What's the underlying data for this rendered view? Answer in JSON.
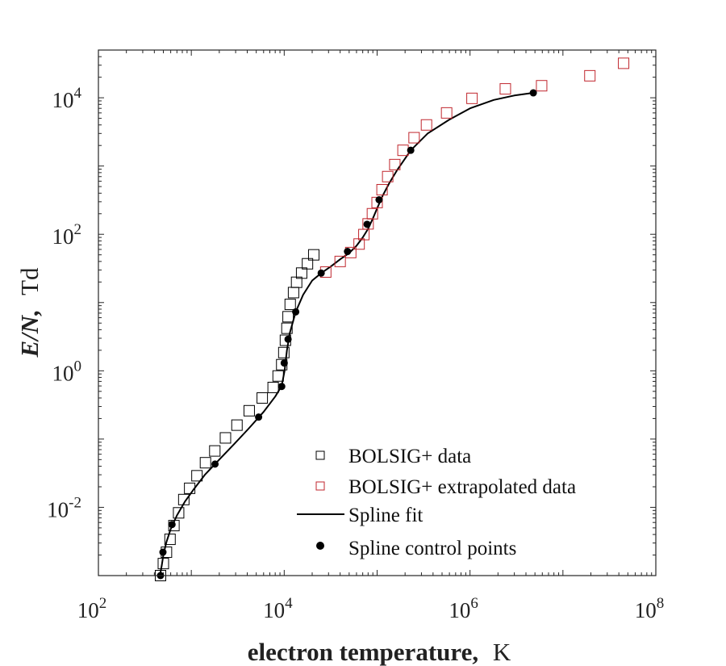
{
  "chart_data": {
    "type": "scatter",
    "xscale": "log",
    "yscale": "log",
    "xlim": [
      100,
      100000000
    ],
    "ylim": [
      0.001,
      50000
    ],
    "xlabel": {
      "bold": "electron temperature,",
      "unit": "K"
    },
    "ylabel": {
      "bold": "E/N,",
      "unit": "Td"
    },
    "xticks": [
      {
        "value": 100,
        "base": "10",
        "exp": "2"
      },
      {
        "value": 10000,
        "base": "10",
        "exp": "4"
      },
      {
        "value": 1000000,
        "base": "10",
        "exp": "6"
      },
      {
        "value": 100000000,
        "base": "10",
        "exp": "8"
      }
    ],
    "yticks": [
      {
        "value": 0.01,
        "base": "10",
        "exp": "-2"
      },
      {
        "value": 1,
        "base": "10",
        "exp": "0"
      },
      {
        "value": 100,
        "base": "10",
        "exp": "2"
      },
      {
        "value": 10000,
        "base": "10",
        "exp": "4"
      }
    ],
    "legend_position": "bottom-right",
    "series": [
      {
        "name": "BOLSIG+ data",
        "marker": "open-square",
        "color": "#000000",
        "x": [
          466,
          500,
          540,
          590,
          650,
          730,
          830,
          960,
          1150,
          1420,
          1790,
          2330,
          3100,
          4200,
          5800,
          7600,
          8600,
          9400,
          9900,
          10300,
          10700,
          11000,
          11600,
          12600,
          13600,
          15400,
          17800,
          20800
        ],
        "y": [
          0.001,
          0.0015,
          0.0022,
          0.0034,
          0.0054,
          0.0083,
          0.013,
          0.019,
          0.029,
          0.045,
          0.067,
          0.104,
          0.16,
          0.26,
          0.4,
          0.57,
          0.84,
          1.23,
          1.85,
          2.8,
          4.2,
          6.2,
          9.4,
          14,
          19.8,
          27,
          37,
          50
        ]
      },
      {
        "name": "BOLSIG+ extrapolated data",
        "marker": "open-square",
        "color": "#c0262d",
        "x": [
          28000,
          40000,
          52000,
          64000,
          72000,
          80000,
          89000,
          100000,
          113000,
          130000,
          155000,
          190000,
          250000,
          340000,
          560000,
          1050000,
          2400000,
          5900000,
          19500000,
          45000000
        ],
        "y": [
          28,
          40,
          54,
          72,
          99,
          142,
          200,
          292,
          450,
          700,
          1050,
          1700,
          2600,
          4000,
          6000,
          9800,
          13500,
          15000,
          21000,
          32000
        ]
      },
      {
        "name": "Spline fit",
        "marker": "line",
        "color": "#000000",
        "x": [
          460,
          480,
          500,
          540,
          600,
          700,
          850,
          1050,
          1400,
          2000,
          2900,
          4100,
          6000,
          8000,
          9400,
          10100,
          10700,
          11500,
          13300,
          16000,
          20000,
          25000,
          32000,
          40000,
          50000,
          60000,
          70000,
          80000,
          90000,
          100000,
          115000,
          135000,
          165000,
          230000,
          350000,
          600000,
          1000000,
          1800000,
          3000000,
          4800000
        ],
        "y": [
          0.001,
          0.0014,
          0.002,
          0.0031,
          0.0048,
          0.0076,
          0.012,
          0.018,
          0.03,
          0.05,
          0.085,
          0.14,
          0.25,
          0.42,
          0.6,
          1.0,
          2.0,
          3.6,
          7.3,
          13,
          21,
          27,
          34,
          43,
          53,
          68,
          90,
          120,
          170,
          240,
          370,
          560,
          880,
          1700,
          3000,
          4800,
          7000,
          9300,
          10800,
          11800
        ]
      },
      {
        "name": "Spline control points",
        "marker": "filled-circle",
        "color": "#000000",
        "x": [
          466,
          495,
          620,
          1800,
          5300,
          9400,
          10000,
          11000,
          13300,
          25000,
          48000,
          78000,
          105000,
          230000,
          4800000
        ],
        "y": [
          0.001,
          0.0022,
          0.0056,
          0.043,
          0.21,
          0.59,
          1.3,
          2.9,
          7.3,
          27,
          56,
          140,
          320,
          1700,
          11800
        ]
      }
    ]
  }
}
